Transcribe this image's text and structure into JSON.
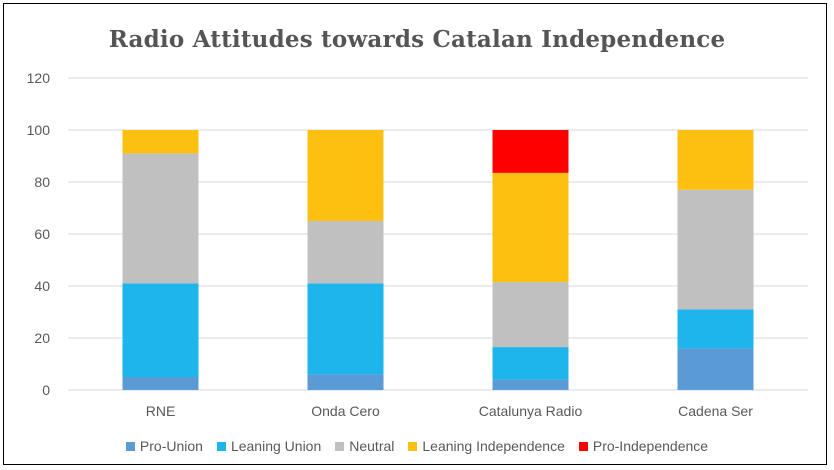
{
  "chart_data": {
    "type": "bar",
    "stacked": true,
    "title": "Radio Attitudes towards Catalan Independence",
    "xlabel": "",
    "ylabel": "",
    "ylim": [
      0,
      120
    ],
    "yticks": [
      0,
      20,
      40,
      60,
      80,
      100,
      120
    ],
    "grid": true,
    "legend_position": "bottom",
    "categories": [
      "RNE",
      "Onda Cero",
      "Catalunya Radio",
      "Cadena Ser"
    ],
    "series": [
      {
        "name": "Pro-Union",
        "color": "#5b9bd5",
        "values": [
          5,
          6,
          4,
          16
        ]
      },
      {
        "name": "Leaning Union",
        "color": "#1eb4ec",
        "values": [
          36,
          35,
          12.5,
          15
        ]
      },
      {
        "name": "Neutral",
        "color": "#c0c0c0",
        "values": [
          50,
          24,
          25,
          46
        ]
      },
      {
        "name": "Leaning Independence",
        "color": "#fdc010",
        "values": [
          9,
          35,
          42,
          23
        ]
      },
      {
        "name": "Pro-Independence",
        "color": "#ff0000",
        "values": [
          0,
          0,
          16.5,
          0
        ]
      }
    ]
  }
}
